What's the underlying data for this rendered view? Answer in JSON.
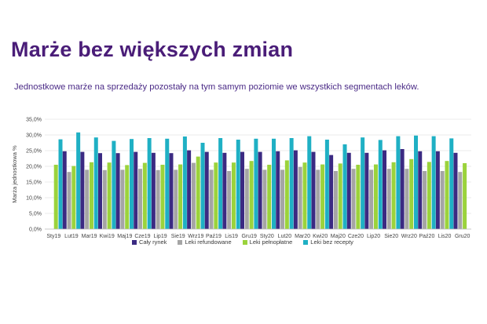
{
  "page": {
    "title": "Marże bez większych zmian",
    "subtitle": "Jednostkowe marże na sprzedaży pozostały na tym samym poziomie we wszystkich segmentach leków."
  },
  "chart_data": {
    "type": "bar",
    "ylabel": "Marża jednostkowa %",
    "ylim": [
      0,
      35
    ],
    "yticks": [
      "0,0%",
      "5,0%",
      "10,0%",
      "15,0%",
      "20,0%",
      "25,0%",
      "30,0%",
      "35,0%"
    ],
    "grid": true,
    "legend_position": "bottom",
    "categories": [
      "Sty19",
      "Lut19",
      "Mar19",
      "Kwi19",
      "Maj19",
      "Cze19",
      "Lip19",
      "Sie19",
      "Wrz19",
      "Paź19",
      "Lis19",
      "Gru19",
      "Sty20",
      "Lut20",
      "Mar20",
      "Kwi20",
      "Maj20",
      "Cze20",
      "Lip20",
      "Sie20",
      "Wrz20",
      "Paź20",
      "Lis20",
      "Gru20"
    ],
    "series": [
      {
        "name": "Cały rynek",
        "color": "#3b2a82",
        "values": [
          null,
          24.8,
          24.6,
          24.2,
          24.2,
          24.6,
          24.3,
          24.2,
          25.1,
          24.6,
          24.3,
          24.6,
          24.6,
          24.8,
          25.1,
          24.6,
          23.6,
          24.3,
          24.3,
          25.1,
          25.5,
          24.8,
          24.8,
          24.3
        ]
      },
      {
        "name": "Leki refundowane",
        "color": "#a5a5a5",
        "values": [
          null,
          18.2,
          18.9,
          18.8,
          18.9,
          19.2,
          18.8,
          18.9,
          21.1,
          18.9,
          18.5,
          19.2,
          18.9,
          18.9,
          19.8,
          18.9,
          18.5,
          19.2,
          18.9,
          19.2,
          19.2,
          18.5,
          18.5,
          18.2
        ]
      },
      {
        "name": "Leki pełnopłatne",
        "color": "#9bd33c",
        "values": [
          20.5,
          20.1,
          21.3,
          21.2,
          20.4,
          21.1,
          20.5,
          20.6,
          23.1,
          21.2,
          21.2,
          21.7,
          20.5,
          21.9,
          21.2,
          20.6,
          20.9,
          20.5,
          20.6,
          21.3,
          22.3,
          21.4,
          21.7,
          21.0
        ]
      },
      {
        "name": "Leki bez recepty",
        "color": "#1fb0c4",
        "values": [
          28.6,
          30.8,
          29.2,
          28.1,
          28.7,
          29.0,
          28.8,
          29.5,
          27.5,
          29.0,
          28.5,
          28.8,
          28.8,
          29.0,
          29.6,
          28.5,
          27.0,
          29.2,
          28.4,
          29.6,
          29.8,
          29.6,
          28.9,
          null
        ]
      }
    ]
  }
}
